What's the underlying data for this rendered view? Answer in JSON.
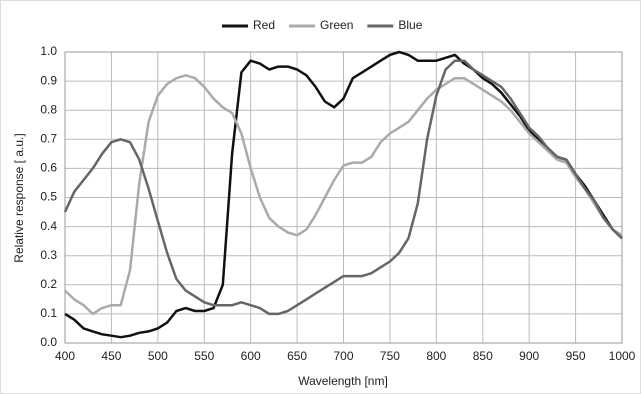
{
  "chart_data": {
    "type": "line",
    "x_label": "Wavelength [nm]",
    "y_label": "Relative response [ a.u.]",
    "x": [
      400,
      410,
      420,
      430,
      440,
      450,
      460,
      470,
      480,
      490,
      500,
      510,
      520,
      530,
      540,
      550,
      560,
      570,
      580,
      590,
      600,
      610,
      620,
      630,
      640,
      650,
      660,
      670,
      680,
      690,
      700,
      710,
      720,
      730,
      740,
      750,
      760,
      770,
      780,
      790,
      800,
      810,
      820,
      830,
      840,
      850,
      860,
      870,
      880,
      890,
      900,
      910,
      920,
      930,
      940,
      950,
      960,
      970,
      980,
      990,
      1000
    ],
    "series": [
      {
        "name": "Red",
        "color": "#111111",
        "values": [
          0.1,
          0.08,
          0.05,
          0.04,
          0.03,
          0.025,
          0.02,
          0.025,
          0.035,
          0.04,
          0.05,
          0.07,
          0.11,
          0.12,
          0.11,
          0.11,
          0.12,
          0.2,
          0.65,
          0.93,
          0.97,
          0.96,
          0.94,
          0.95,
          0.95,
          0.94,
          0.92,
          0.88,
          0.83,
          0.81,
          0.84,
          0.91,
          0.93,
          0.95,
          0.97,
          0.99,
          1.0,
          0.99,
          0.97,
          0.97,
          0.97,
          0.98,
          0.99,
          0.96,
          0.94,
          0.91,
          0.89,
          0.86,
          0.82,
          0.78,
          0.73,
          0.7,
          0.67,
          0.64,
          0.63,
          0.58,
          0.54,
          0.49,
          0.44,
          0.39,
          0.36
        ]
      },
      {
        "name": "Green",
        "color": "#aaaaaa",
        "values": [
          0.18,
          0.15,
          0.13,
          0.1,
          0.12,
          0.13,
          0.13,
          0.25,
          0.55,
          0.76,
          0.85,
          0.89,
          0.91,
          0.92,
          0.91,
          0.88,
          0.84,
          0.81,
          0.79,
          0.72,
          0.6,
          0.5,
          0.43,
          0.4,
          0.38,
          0.37,
          0.39,
          0.44,
          0.5,
          0.56,
          0.61,
          0.62,
          0.62,
          0.64,
          0.69,
          0.72,
          0.74,
          0.76,
          0.8,
          0.84,
          0.87,
          0.89,
          0.91,
          0.91,
          0.89,
          0.87,
          0.85,
          0.83,
          0.8,
          0.76,
          0.72,
          0.69,
          0.66,
          0.63,
          0.62,
          0.57,
          0.53,
          0.48,
          0.43,
          0.39,
          0.37
        ]
      },
      {
        "name": "Blue",
        "color": "#666666",
        "values": [
          0.45,
          0.52,
          0.56,
          0.6,
          0.65,
          0.69,
          0.7,
          0.69,
          0.63,
          0.53,
          0.42,
          0.31,
          0.22,
          0.18,
          0.16,
          0.14,
          0.13,
          0.13,
          0.13,
          0.14,
          0.13,
          0.12,
          0.1,
          0.1,
          0.11,
          0.13,
          0.15,
          0.17,
          0.19,
          0.21,
          0.23,
          0.23,
          0.23,
          0.24,
          0.26,
          0.28,
          0.31,
          0.36,
          0.48,
          0.7,
          0.85,
          0.94,
          0.97,
          0.97,
          0.94,
          0.92,
          0.9,
          0.88,
          0.84,
          0.79,
          0.74,
          0.71,
          0.67,
          0.64,
          0.63,
          0.58,
          0.53,
          0.49,
          0.43,
          0.39,
          0.36
        ]
      }
    ],
    "xlim": [
      400,
      1000
    ],
    "xticks": [
      400,
      450,
      500,
      550,
      600,
      650,
      700,
      750,
      800,
      850,
      900,
      950,
      1000
    ],
    "ylim": [
      0,
      1
    ],
    "yticks": [
      {
        "value": 0,
        "label": "0.0"
      },
      0.1,
      0.2,
      0.3,
      0.4,
      0.5,
      0.6,
      0.7,
      0.8,
      0.9,
      {
        "value": 1,
        "label": "1.0"
      }
    ],
    "grid": true,
    "legend": "top"
  }
}
